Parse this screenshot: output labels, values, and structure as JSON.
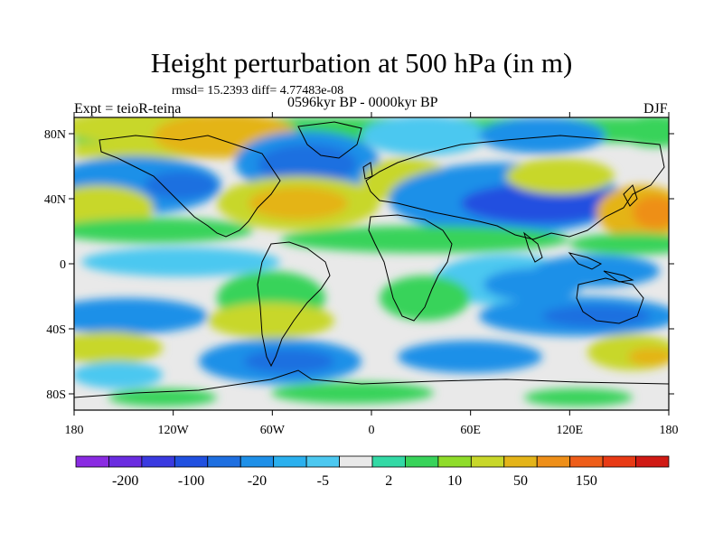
{
  "title": "Height perturbation at 500 hPa (in m)",
  "stats": "rmsd= 15.2393 diff= 4.77483e-08",
  "left_label": "Expt = teioR-teina",
  "center_label": "0596kyr BP - 0000kyr BP",
  "right_label": "DJF",
  "map": {
    "lon_ticks": [
      "180",
      "120W",
      "60W",
      "0",
      "60E",
      "120E",
      "180"
    ],
    "lat_ticks": [
      "80N",
      "40N",
      "0",
      "40S",
      "80S"
    ],
    "lat_tick_values": [
      80,
      40,
      0,
      -40,
      -80
    ],
    "lon_range": [
      -180,
      180
    ],
    "lat_range": [
      -90,
      90
    ]
  },
  "colorbar": {
    "colors": [
      "#8a2be2",
      "#6a2ce0",
      "#3a3ae0",
      "#2050e0",
      "#1e6fe0",
      "#1e90e8",
      "#2bb0ee",
      "#4cc8f0",
      "#e9e9e9",
      "#33d9a5",
      "#38d35a",
      "#8fdc2a",
      "#c8d72a",
      "#e4b419",
      "#ee8f19",
      "#ee5d19",
      "#e83a15",
      "#d01a14"
    ],
    "labels": [
      "-200",
      "-100",
      "-20",
      "-5",
      "2",
      "10",
      "50",
      "150"
    ],
    "label_after_box": [
      1,
      3,
      5,
      7,
      9,
      11,
      13,
      15
    ]
  }
}
